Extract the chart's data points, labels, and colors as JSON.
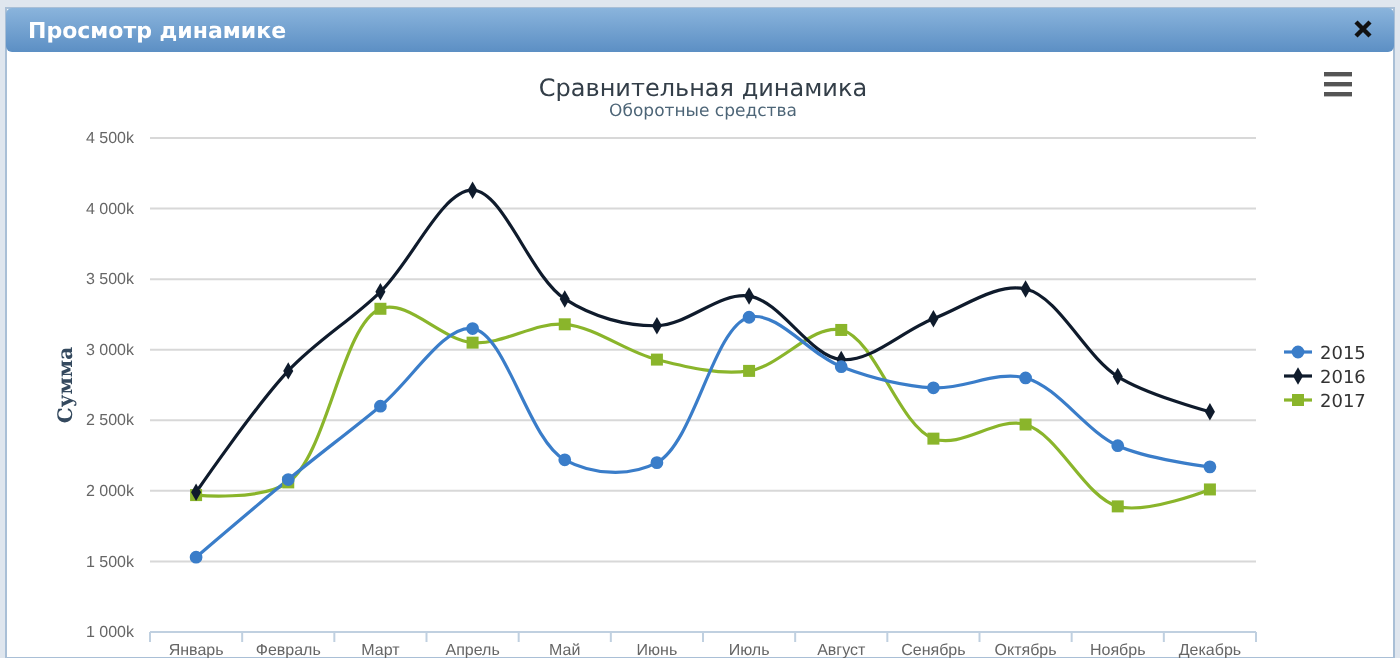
{
  "chart_data": {
    "type": "line",
    "title": "Сравнительная динамика",
    "subtitle": "Оборотные средства",
    "ylabel": "Сумма",
    "annotations": [
      "Просмотр динамике"
    ],
    "categories": [
      "Январь",
      "Февраль",
      "Март",
      "Апрель",
      "Май",
      "Июнь",
      "Июль",
      "Август",
      "Сенябрь",
      "Октябрь",
      "Ноябрь",
      "Декабрь"
    ],
    "series": [
      {
        "name": "2015",
        "color": "#3a7dc9",
        "marker": "circle",
        "values": [
          1530,
          2080,
          2600,
          3150,
          2220,
          2200,
          3230,
          2880,
          2730,
          2800,
          2320,
          2170
        ]
      },
      {
        "name": "2016",
        "color": "#0f1b2c",
        "marker": "diamond",
        "values": [
          1990,
          2850,
          3410,
          4130,
          3360,
          3170,
          3380,
          2930,
          3220,
          3430,
          2810,
          2560
        ]
      },
      {
        "name": "2017",
        "color": "#8ab52b",
        "marker": "square",
        "values": [
          1970,
          2060,
          3290,
          3050,
          3180,
          2930,
          2850,
          3140,
          2370,
          2470,
          1890,
          2010
        ]
      }
    ],
    "ylim": [
      1000,
      4500
    ],
    "yticks": [
      {
        "value": 1000,
        "label": "1 000k"
      },
      {
        "value": 1500,
        "label": "1 500k"
      },
      {
        "value": 2000,
        "label": "2 000k"
      },
      {
        "value": 2500,
        "label": "2 500k"
      },
      {
        "value": 3000,
        "label": "3 000k"
      },
      {
        "value": 3500,
        "label": "3 500k"
      },
      {
        "value": 4000,
        "label": "4 000k"
      },
      {
        "value": 4500,
        "label": "4 500k"
      }
    ],
    "grid": "y",
    "legend": "right",
    "line_style": "solid"
  }
}
